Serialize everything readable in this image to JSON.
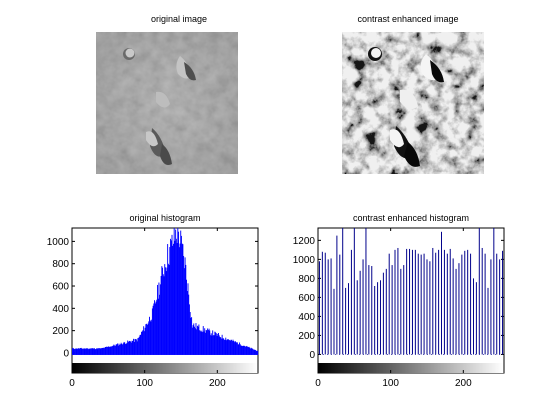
{
  "panels": {
    "original_image_title": "original image",
    "enhanced_image_title": "contrast enhanced image",
    "original_hist_title": "original histogram",
    "enhanced_hist_title": "contrast enhanced histogram"
  },
  "chart_data": [
    {
      "type": "bar",
      "title": "original histogram",
      "xlim": [
        0,
        256
      ],
      "ylim": [
        -90,
        1120
      ],
      "xticks": [
        0,
        100,
        200
      ],
      "yticks": [
        0,
        200,
        400,
        600,
        800,
        1000
      ],
      "bar_color": "#0000ff",
      "colorbar": "grayscale",
      "series": [
        {
          "x_start": 0,
          "x_end": 40,
          "values_desc": "low",
          "level": 40
        },
        {
          "x_start": 40,
          "x_end": 90,
          "level_start": 40,
          "level_end": 120
        },
        {
          "x_start": 90,
          "x_end": 110,
          "level_start": 120,
          "level_end": 350
        },
        {
          "x_start": 110,
          "x_end": 128,
          "level_start": 350,
          "level_end": 820
        },
        {
          "x_start": 128,
          "x_end": 145,
          "level_start": 820,
          "level_end": 1110
        },
        {
          "x_start": 145,
          "x_end": 155,
          "level_start": 1110,
          "level_end": 800
        },
        {
          "x_start": 155,
          "x_end": 165,
          "level_start": 800,
          "level_end": 250
        },
        {
          "x_start": 165,
          "x_end": 256,
          "level_start": 250,
          "level_end": 15
        }
      ]
    },
    {
      "type": "bar",
      "title": "contrast enhanced histogram",
      "xlim": [
        0,
        256
      ],
      "ylim": [
        -90,
        1330
      ],
      "xticks": [
        0,
        100,
        200
      ],
      "yticks": [
        0,
        200,
        400,
        600,
        800,
        1000,
        1200
      ],
      "bar_color": "#00008b",
      "colorbar": "grayscale",
      "stems": [
        [
          2,
          980
        ],
        [
          6,
          1080
        ],
        [
          10,
          1070
        ],
        [
          14,
          1000
        ],
        [
          18,
          1010
        ],
        [
          22,
          690
        ],
        [
          26,
          1250
        ],
        [
          30,
          1050
        ],
        [
          34,
          1330
        ],
        [
          38,
          700
        ],
        [
          42,
          750
        ],
        [
          46,
          1100
        ],
        [
          50,
          1330
        ],
        [
          54,
          780
        ],
        [
          58,
          880
        ],
        [
          62,
          1000
        ],
        [
          66,
          1330
        ],
        [
          70,
          940
        ],
        [
          74,
          930
        ],
        [
          78,
          720
        ],
        [
          82,
          760
        ],
        [
          86,
          780
        ],
        [
          90,
          860
        ],
        [
          94,
          900
        ],
        [
          98,
          1060
        ],
        [
          102,
          940
        ],
        [
          106,
          1100
        ],
        [
          110,
          1120
        ],
        [
          114,
          900
        ],
        [
          118,
          940
        ],
        [
          122,
          1110
        ],
        [
          126,
          1110
        ],
        [
          130,
          1100
        ],
        [
          134,
          1100
        ],
        [
          138,
          1060
        ],
        [
          142,
          1050
        ],
        [
          146,
          1060
        ],
        [
          150,
          1000
        ],
        [
          154,
          980
        ],
        [
          158,
          1120
        ],
        [
          162,
          1070
        ],
        [
          166,
          1100
        ],
        [
          170,
          1290
        ],
        [
          174,
          1100
        ],
        [
          178,
          1060
        ],
        [
          182,
          1110
        ],
        [
          186,
          1010
        ],
        [
          190,
          900
        ],
        [
          194,
          960
        ],
        [
          198,
          1050
        ],
        [
          202,
          1090
        ],
        [
          206,
          1100
        ],
        [
          210,
          1060
        ],
        [
          214,
          800
        ],
        [
          218,
          760
        ],
        [
          222,
          1330
        ],
        [
          226,
          1120
        ],
        [
          230,
          1060
        ],
        [
          234,
          700
        ],
        [
          238,
          1000
        ],
        [
          242,
          1330
        ],
        [
          246,
          1060
        ],
        [
          250,
          1000
        ],
        [
          254,
          1090
        ]
      ]
    }
  ]
}
